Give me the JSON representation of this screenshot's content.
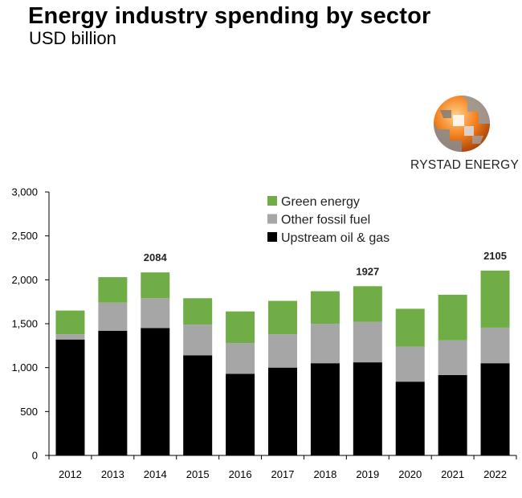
{
  "header": {
    "title": "Energy industry spending by sector",
    "subtitle": "USD billion"
  },
  "brand": {
    "name": "RYSTAD ENERGY",
    "logo_icon": "rystad-globe-icon",
    "logo_colors": [
      "#F58220",
      "#8C8C8C"
    ]
  },
  "chart_data": {
    "type": "bar",
    "stacked": true,
    "categories": [
      "2012",
      "2013",
      "2014",
      "2015",
      "2016",
      "2017",
      "2018",
      "2019",
      "2020",
      "2021",
      "2022"
    ],
    "series": [
      {
        "name": "Upstream oil & gas",
        "color": "#000000",
        "values": [
          1320,
          1420,
          1450,
          1140,
          930,
          1000,
          1050,
          1060,
          840,
          915,
          1050
        ]
      },
      {
        "name": "Other fossil fuel",
        "color": "#A6A6A6",
        "values": [
          60,
          320,
          340,
          350,
          350,
          380,
          450,
          460,
          400,
          395,
          405
        ]
      },
      {
        "name": "Green energy",
        "color": "#70AD47",
        "values": [
          270,
          290,
          294,
          300,
          360,
          380,
          370,
          407,
          430,
          520,
          650
        ]
      }
    ],
    "legend_order": [
      "Green energy",
      "Other fossil fuel",
      "Upstream oil & gas"
    ],
    "legend_position": "top-center",
    "ylim": [
      0,
      3000
    ],
    "yticks": [
      0,
      500,
      1000,
      1500,
      2000,
      2500,
      3000
    ],
    "ytick_labels": [
      "0",
      "500",
      "1,000",
      "1,500",
      "2,000",
      "2,500",
      "3,000"
    ],
    "grid": false,
    "annotations": [
      {
        "category": "2014",
        "text": "2084"
      },
      {
        "category": "2019",
        "text": "1927"
      },
      {
        "category": "2022",
        "text": "2105"
      }
    ]
  }
}
